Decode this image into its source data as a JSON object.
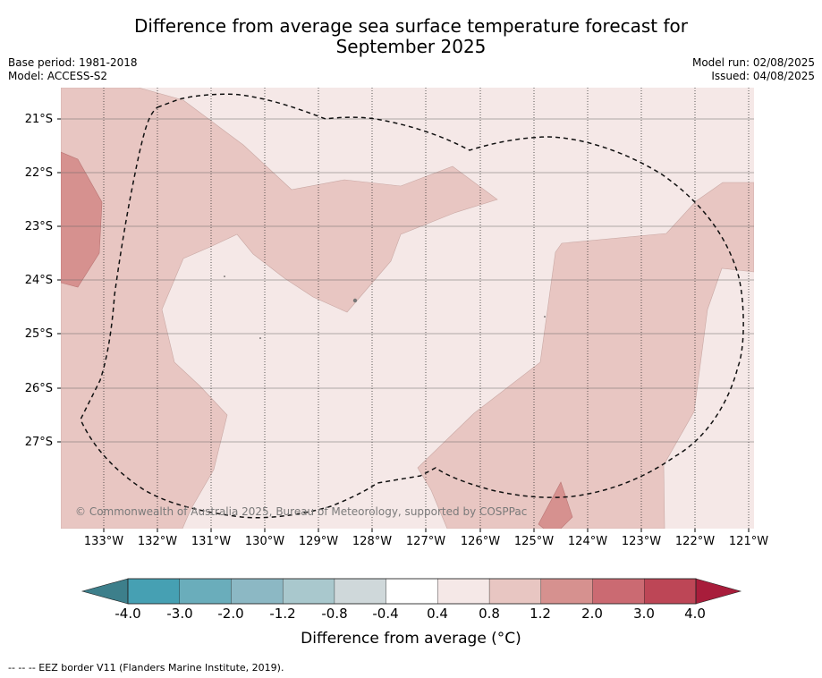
{
  "title_line1": "Difference from average sea surface temperature forecast for",
  "title_line2": "September 2025",
  "meta": {
    "base_period": "Base period: 1981-2018",
    "model": "Model: ACCESS-S2",
    "model_run": "Model run: 02/08/2025",
    "issued": "Issued: 04/08/2025"
  },
  "copyright": "© Commonwealth of Australia 2025, Bureau of Meteorology, supported by COSPPac",
  "lat_labels": [
    "21°S",
    "22°S",
    "23°S",
    "24°S",
    "25°S",
    "26°S",
    "27°S"
  ],
  "lon_labels": [
    "133°W",
    "132°W",
    "131°W",
    "130°W",
    "129°W",
    "128°W",
    "127°W",
    "126°W",
    "125°W",
    "124°W",
    "123°W",
    "122°W",
    "121°W"
  ],
  "colorbar": {
    "label": "Difference from average (°C)",
    "ticks": [
      "-4.0",
      "-3.0",
      "-2.0",
      "-1.2",
      "-0.8",
      "-0.4",
      "0.4",
      "0.8",
      "1.2",
      "2.0",
      "3.0",
      "4.0"
    ],
    "colors": {
      "below_min": "#3d7f8b",
      "bins": [
        "#46a0b3",
        "#6aadbb",
        "#8cb8c4",
        "#a9c8cd",
        "#cfd8da",
        "#ffffff",
        "#f5e8e7",
        "#e8c6c2",
        "#d6918f",
        "#cb6a72",
        "#bd4656"
      ],
      "above_max": "#a81d3b"
    }
  },
  "map_colors": {
    "anomaly_0.4_0.8": "#f5e8e7",
    "anomaly_0.8_1.2": "#e8c6c2",
    "anomaly_1.2_2.0": "#d6918f"
  },
  "footnote": "-- -- -- EEZ border V11 (Flanders Marine Institute, 2019)."
}
